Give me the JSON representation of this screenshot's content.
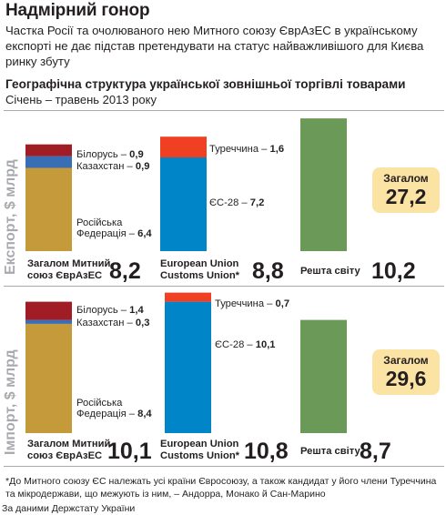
{
  "header": {
    "headline": "Надмірний гонор",
    "subhead": "Частка Росії та очолюваного нею Митного союзу ЄврАзЕС в українському експорті не дає підстав претендувати на статус найважливішого для Києва ринку збуту",
    "chart_title": "Географічна структура української зовнішньої торгівлі товарами",
    "period": "Січень – травень 2013 року"
  },
  "footer": {
    "footnote": "*До Митного союзу ЄС належать усі країни Євросоюзу, а також кандидат у його члени Туреччина та мікродержави, що межують із ним, – Андорра, Монако й Сан-Марино",
    "source": "За даними Держстату України"
  },
  "colors": {
    "russia": "#c49a3a",
    "kazakhstan": "#3a6eb4",
    "belarus": "#a11d25",
    "eu28": "#0085c8",
    "turkey": "#ef4023",
    "rest": "#6b9a58",
    "total_box": "#fbe3a4",
    "axis_label": "#a7a9ac"
  },
  "chart_data": [
    {
      "type": "bar",
      "stacked": true,
      "ylabel": "Експорт, $ млрд",
      "groups": [
        {
          "label_lines": [
            "Загалом Митний",
            "союз ЄврАзЕС"
          ],
          "total": "8,2",
          "segments": [
            {
              "name": "Російська Федерація",
              "label_lines": [
                "Російська",
                "Федерація"
              ],
              "value": 6.4,
              "value_text": "6,4",
              "color": "russia"
            },
            {
              "name": "Казахстан",
              "value": 0.9,
              "value_text": "0,9",
              "color": "kazakhstan"
            },
            {
              "name": "Білорусь",
              "value": 0.9,
              "value_text": "0,9",
              "color": "belarus"
            }
          ]
        },
        {
          "label_lines": [
            "European Union",
            "Customs Union*"
          ],
          "total": "8,8",
          "segments": [
            {
              "name": "ЄС-28",
              "value": 7.2,
              "value_text": "7,2",
              "color": "eu28"
            },
            {
              "name": "Туреччина",
              "value": 1.6,
              "value_text": "1,6",
              "color": "turkey"
            }
          ]
        },
        {
          "label_lines": [
            "Решта світу"
          ],
          "total": "10,2",
          "segments": [
            {
              "name": "",
              "value": 10.2,
              "value_text": "",
              "color": "rest"
            }
          ]
        }
      ],
      "total_label": "Загалом",
      "total_value": "27,2"
    },
    {
      "type": "bar",
      "stacked": true,
      "ylabel": "Імпорт, $ млрд",
      "groups": [
        {
          "label_lines": [
            "Загалом Митний",
            "союз ЄврАзЕС"
          ],
          "total": "10,1",
          "segments": [
            {
              "name": "Російська Федерація",
              "label_lines": [
                "Російська",
                "Федерація"
              ],
              "value": 8.4,
              "value_text": "8,4",
              "color": "russia"
            },
            {
              "name": "Казахстан",
              "value": 0.3,
              "value_text": "0,3",
              "color": "kazakhstan"
            },
            {
              "name": "Білорусь",
              "value": 1.4,
              "value_text": "1,4",
              "color": "belarus"
            }
          ]
        },
        {
          "label_lines": [
            "European Union",
            "Customs Union*"
          ],
          "total": "10,8",
          "segments": [
            {
              "name": "ЄС-28",
              "value": 10.1,
              "value_text": "10,1",
              "color": "eu28"
            },
            {
              "name": "Туреччина",
              "value": 0.7,
              "value_text": "0,7",
              "color": "turkey"
            }
          ]
        },
        {
          "label_lines": [
            "Решта світу"
          ],
          "total": "8,7",
          "segments": [
            {
              "name": "",
              "value": 8.7,
              "value_text": "",
              "color": "rest"
            }
          ]
        }
      ],
      "total_label": "Загалом",
      "total_value": "29,6"
    }
  ]
}
